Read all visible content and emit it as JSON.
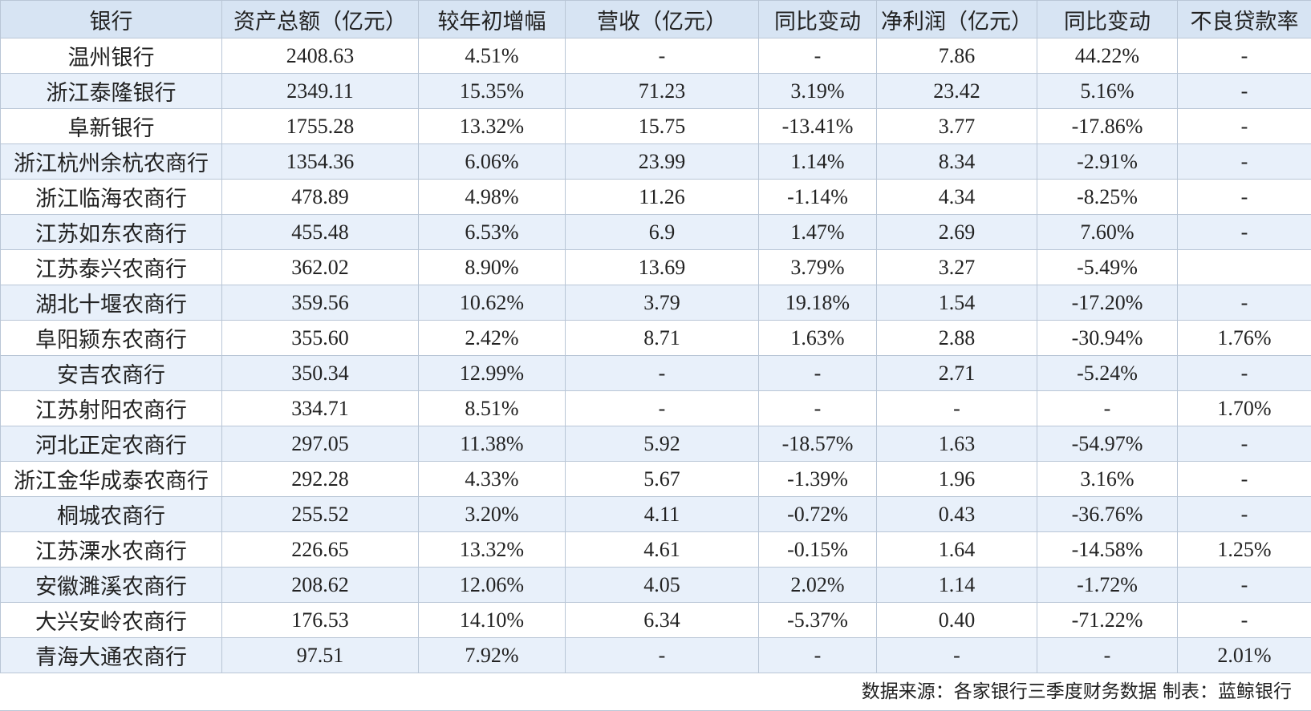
{
  "table": {
    "header": [
      "银行",
      "资产总额（亿元）",
      "较年初增幅",
      "营收（亿元）",
      "同比变动",
      "净利润（亿元）",
      "同比变动",
      "不良贷款率"
    ],
    "rows": [
      [
        "温州银行",
        "2408.63",
        "4.51%",
        "-",
        "-",
        "7.86",
        "44.22%",
        "-"
      ],
      [
        "浙江泰隆银行",
        "2349.11",
        "15.35%",
        "71.23",
        "3.19%",
        "23.42",
        "5.16%",
        "-"
      ],
      [
        "阜新银行",
        "1755.28",
        "13.32%",
        "15.75",
        "-13.41%",
        "3.77",
        "-17.86%",
        "-"
      ],
      [
        "浙江杭州余杭农商行",
        "1354.36",
        "6.06%",
        "23.99",
        "1.14%",
        "8.34",
        "-2.91%",
        "-"
      ],
      [
        "浙江临海农商行",
        "478.89",
        "4.98%",
        "11.26",
        "-1.14%",
        "4.34",
        "-8.25%",
        "-"
      ],
      [
        "江苏如东农商行",
        "455.48",
        "6.53%",
        "6.9",
        "1.47%",
        "2.69",
        "7.60%",
        "-"
      ],
      [
        "江苏泰兴农商行",
        "362.02",
        "8.90%",
        "13.69",
        "3.79%",
        "3.27",
        "-5.49%",
        null
      ],
      [
        "湖北十堰农商行",
        "359.56",
        "10.62%",
        "3.79",
        "19.18%",
        "1.54",
        "-17.20%",
        "-"
      ],
      [
        "阜阳颍东农商行",
        "355.60",
        "2.42%",
        "8.71",
        "1.63%",
        "2.88",
        "-30.94%",
        "1.76%"
      ],
      [
        "安吉农商行",
        "350.34",
        "12.99%",
        "-",
        "-",
        "2.71",
        "-5.24%",
        "-"
      ],
      [
        "江苏射阳农商行",
        "334.71",
        "8.51%",
        "-",
        "-",
        "-",
        "-",
        "1.70%"
      ],
      [
        "河北正定农商行",
        "297.05",
        "11.38%",
        "5.92",
        "-18.57%",
        "1.63",
        "-54.97%",
        "-"
      ],
      [
        "浙江金华成泰农商行",
        "292.28",
        "4.33%",
        "5.67",
        "-1.39%",
        "1.96",
        "3.16%",
        "-"
      ],
      [
        "桐城农商行",
        "255.52",
        "3.20%",
        "4.11",
        "-0.72%",
        "0.43",
        "-36.76%",
        "-"
      ],
      [
        "江苏溧水农商行",
        "226.65",
        "13.32%",
        "4.61",
        "-0.15%",
        "1.64",
        "-14.58%",
        "1.25%"
      ],
      [
        "安徽濉溪农商行",
        "208.62",
        "12.06%",
        "4.05",
        "2.02%",
        "1.14",
        "-1.72%",
        "-"
      ],
      [
        "大兴安岭农商行",
        "176.53",
        "14.10%",
        "6.34",
        "-5.37%",
        "0.40",
        "-71.22%",
        "-"
      ],
      [
        "青海大通农商行",
        "97.51",
        "7.92%",
        "-",
        "-",
        "-",
        "-",
        "2.01%"
      ]
    ]
  },
  "footer": "数据来源：各家银行三季度财务数据  制表：蓝鲸银行"
}
